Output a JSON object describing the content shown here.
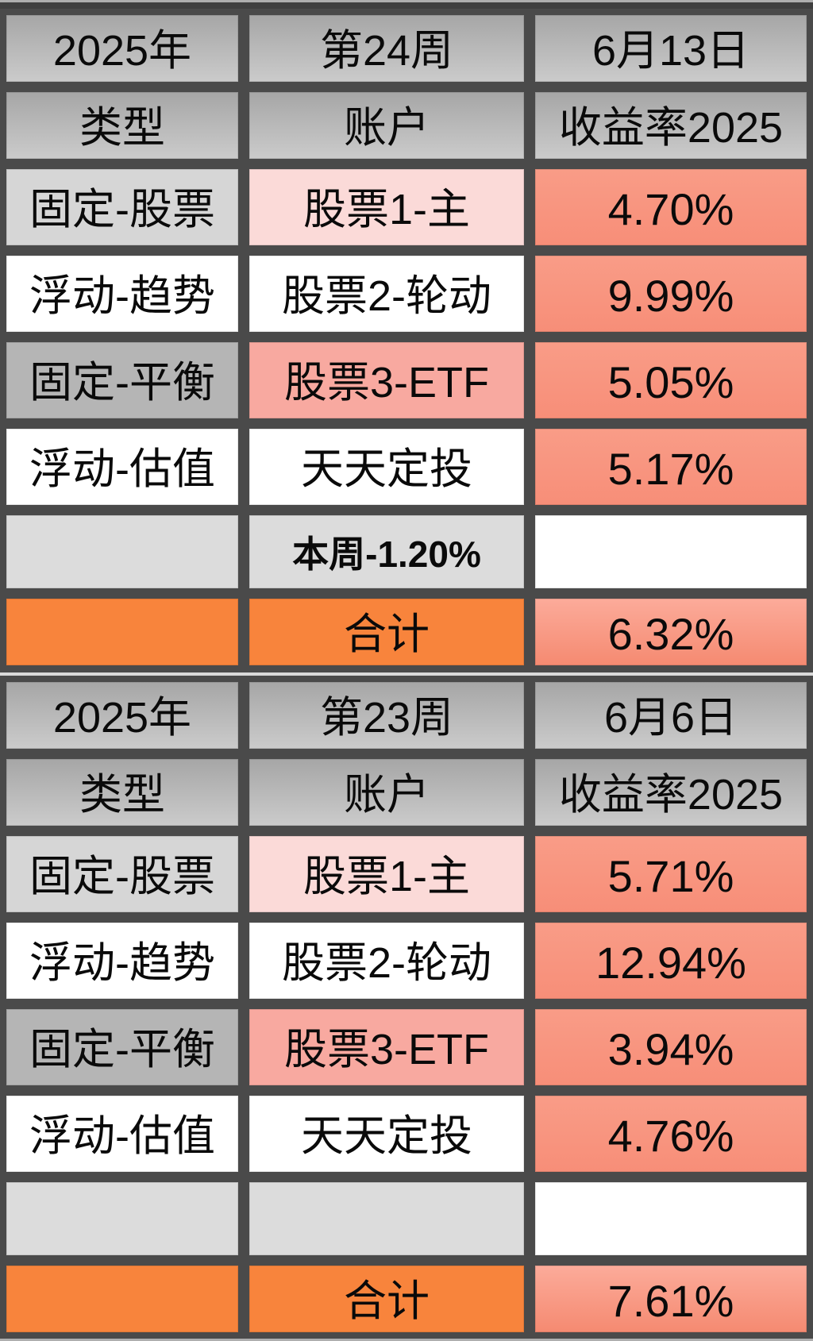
{
  "colors": {
    "gutter": "#4a4a4a",
    "header-gray-top": "#a6a6a6",
    "header-gray-bottom": "#cbcbcb",
    "light-gray": "#d6d6d6",
    "mid-gray": "#b5b5b5",
    "note-gray": "#dcdcdc",
    "pink-light": "#fbdad8",
    "pink": "#f8a9a0",
    "salmon-top": "#f99c87",
    "salmon-bottom": "#f78e78",
    "salmon-total-top": "#fcab9a",
    "salmon-total-bottom": "#f58a71",
    "orange": "#f8843c",
    "separator-line": "#d9d9d9",
    "text": "#0a0a0a"
  },
  "tables": [
    {
      "meta": {
        "year": "2025年",
        "week": "第24周",
        "date": "6月13日"
      },
      "headers": {
        "type": "类型",
        "account": "账户",
        "return": "收益率2025"
      },
      "rows": [
        {
          "type": "固定-股票",
          "account": "股票1-主",
          "return": "4.70%"
        },
        {
          "type": "浮动-趋势",
          "account": "股票2-轮动",
          "return": "9.99%"
        },
        {
          "type": "固定-平衡",
          "account": "股票3-ETF",
          "return": "5.05%"
        },
        {
          "type": "浮动-估值",
          "account": "天天定投",
          "return": "5.17%"
        }
      ],
      "note": "本周-1.20%",
      "total": {
        "label": "合计",
        "value": "6.32%"
      }
    },
    {
      "meta": {
        "year": "2025年",
        "week": "第23周",
        "date": "6月6日"
      },
      "headers": {
        "type": "类型",
        "account": "账户",
        "return": "收益率2025"
      },
      "rows": [
        {
          "type": "固定-股票",
          "account": "股票1-主",
          "return": "5.71%"
        },
        {
          "type": "浮动-趋势",
          "account": "股票2-轮动",
          "return": "12.94%"
        },
        {
          "type": "固定-平衡",
          "account": "股票3-ETF",
          "return": "3.94%"
        },
        {
          "type": "浮动-估值",
          "account": "天天定投",
          "return": "4.76%"
        }
      ],
      "note": "",
      "total": {
        "label": "合计",
        "value": "7.61%"
      }
    }
  ]
}
